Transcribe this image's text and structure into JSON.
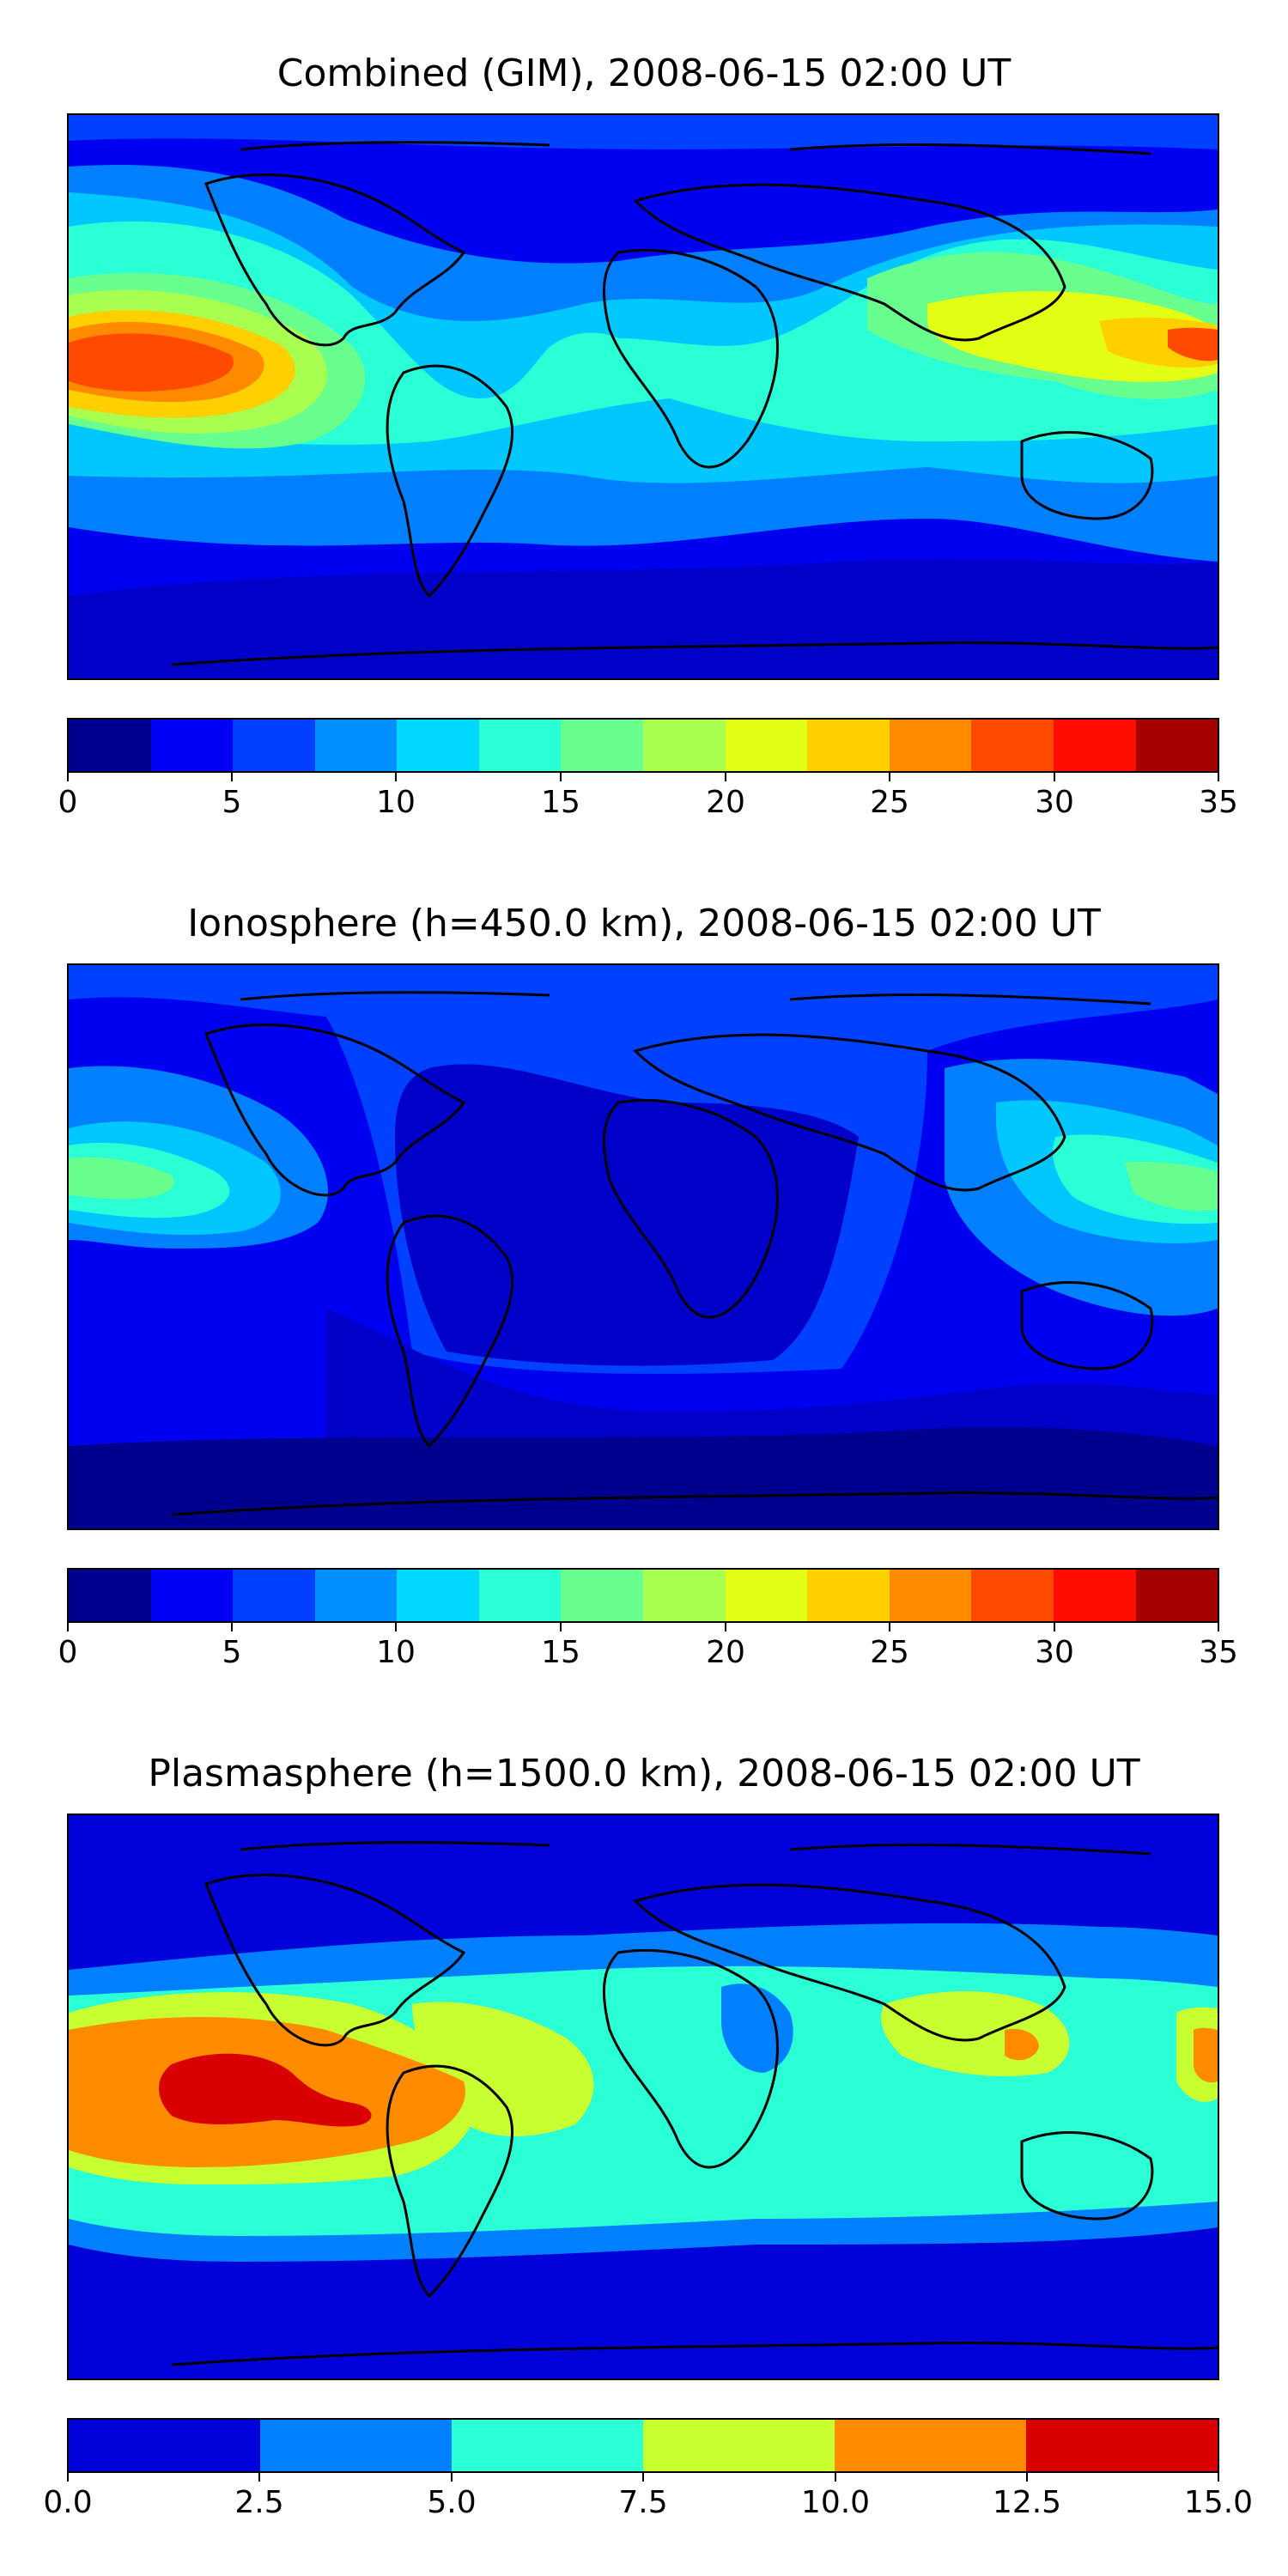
{
  "panels": [
    {
      "title": "Combined (GIM), 2008-06-15 02:00 UT",
      "colorbar": {
        "ticks": [
          "0",
          "5",
          "10",
          "15",
          "20",
          "25",
          "30",
          "35"
        ],
        "colors": [
          "#00008f",
          "#0000f5",
          "#0040ff",
          "#0090ff",
          "#00d8ff",
          "#2affd5",
          "#68ff8f",
          "#a8ff50",
          "#e2ff14",
          "#ffd000",
          "#ff8a00",
          "#ff4a00",
          "#ff0e00",
          "#a50000"
        ]
      }
    },
    {
      "title": "Ionosphere  (h=450.0 km), 2008-06-15 02:00 UT",
      "colorbar": {
        "ticks": [
          "0",
          "5",
          "10",
          "15",
          "20",
          "25",
          "30",
          "35"
        ],
        "colors": [
          "#00008f",
          "#0000f5",
          "#0040ff",
          "#0090ff",
          "#00d8ff",
          "#2affd5",
          "#68ff8f",
          "#a8ff50",
          "#e2ff14",
          "#ffd000",
          "#ff8a00",
          "#ff4a00",
          "#ff0e00",
          "#a50000"
        ]
      }
    },
    {
      "title": "Plasmasphere (h=1500.0 km), 2008-06-15 02:00 UT",
      "colorbar": {
        "ticks": [
          "0.0",
          "2.5",
          "5.0",
          "7.5",
          "10.0",
          "12.5",
          "15.0"
        ],
        "colors": [
          "#0000d8",
          "#0080ff",
          "#2affd5",
          "#c8ff30",
          "#ff8c00",
          "#d80000"
        ]
      }
    }
  ]
}
